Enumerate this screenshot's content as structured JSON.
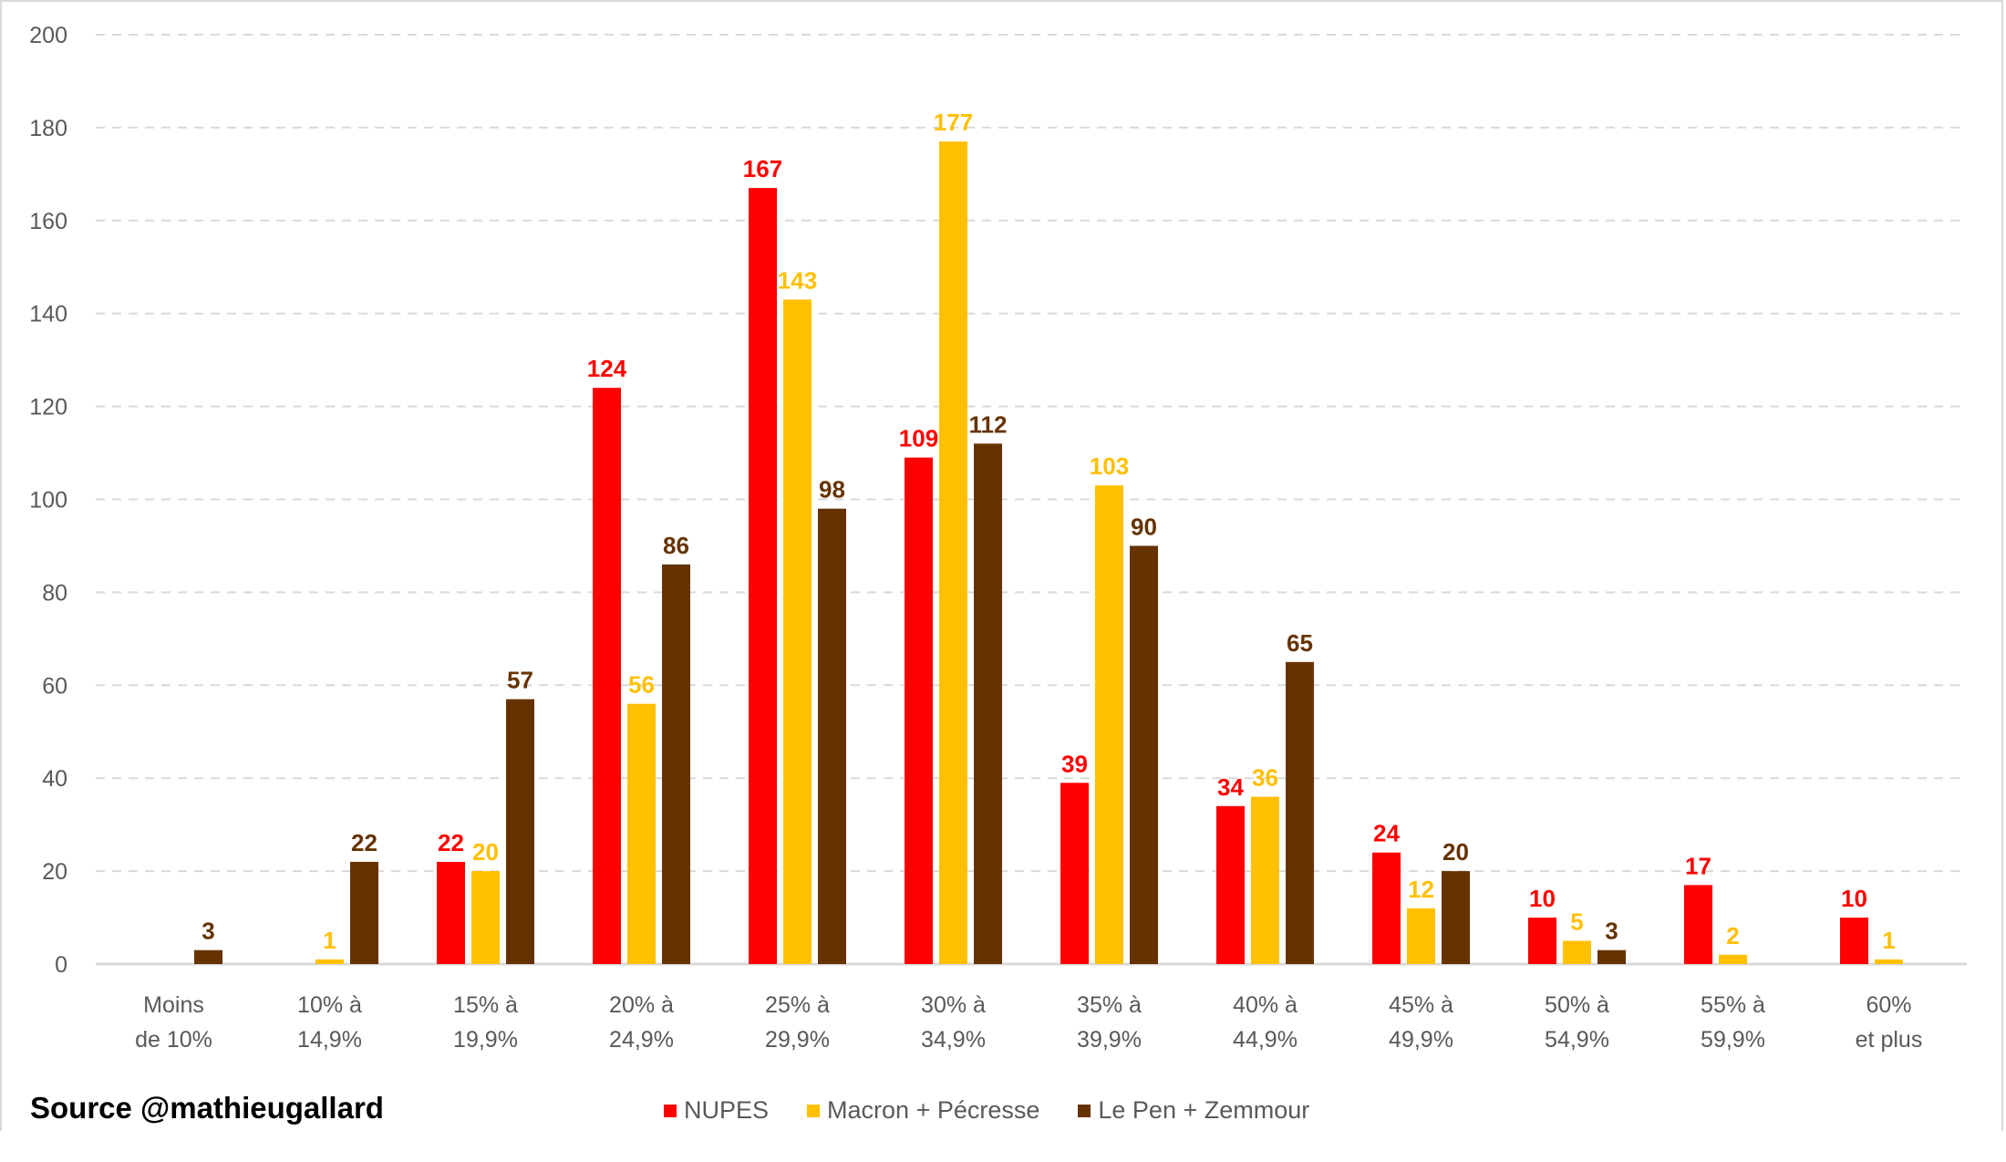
{
  "chart_data": {
    "type": "bar",
    "categories": [
      [
        "Moins",
        "de 10%"
      ],
      [
        "10% à",
        "14,9%"
      ],
      [
        "15% à",
        "19,9%"
      ],
      [
        "20% à",
        "24,9%"
      ],
      [
        "25% à",
        "29,9%"
      ],
      [
        "30% à",
        "34,9%"
      ],
      [
        "35% à",
        "39,9%"
      ],
      [
        "40% à",
        "44,9%"
      ],
      [
        "45% à",
        "49,9%"
      ],
      [
        "50% à",
        "54,9%"
      ],
      [
        "55% à",
        "59,9%"
      ],
      [
        "60%",
        "et plus"
      ]
    ],
    "series": [
      {
        "name": "NUPES",
        "color": "#ff0000",
        "values": [
          null,
          null,
          22,
          124,
          167,
          109,
          39,
          34,
          24,
          10,
          17,
          10
        ]
      },
      {
        "name": "Macron + Pécresse",
        "color": "#ffc000",
        "values": [
          null,
          1,
          20,
          56,
          143,
          177,
          103,
          36,
          12,
          5,
          2,
          1
        ]
      },
      {
        "name": "Le Pen + Zemmour",
        "color": "#663300",
        "values": [
          3,
          22,
          57,
          86,
          98,
          112,
          90,
          65,
          20,
          3,
          null,
          null
        ]
      }
    ],
    "ylim": [
      0,
      200
    ],
    "yticks": [
      0,
      20,
      40,
      60,
      80,
      100,
      120,
      140,
      160,
      180,
      200
    ],
    "grid": true,
    "legend_position": "bottom",
    "title": "",
    "xlabel": "",
    "ylabel": ""
  },
  "source": "Source @mathieugallard"
}
